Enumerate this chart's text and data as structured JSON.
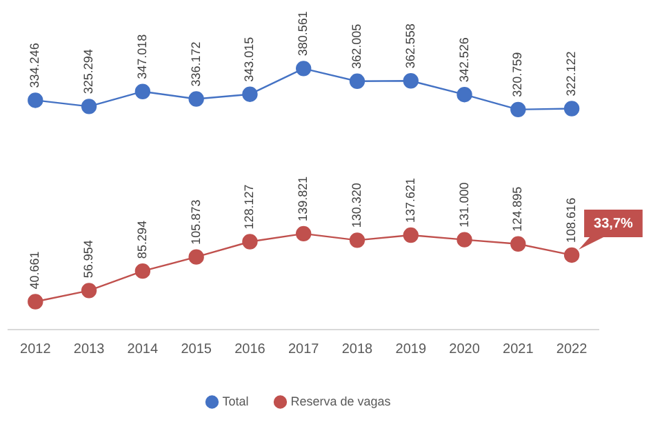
{
  "chart_data": {
    "type": "line",
    "categories": [
      "2012",
      "2013",
      "2014",
      "2015",
      "2016",
      "2017",
      "2018",
      "2019",
      "2020",
      "2021",
      "2022"
    ],
    "series": [
      {
        "name": "Total",
        "color": "#4472c4",
        "values": [
          334246,
          325294,
          347018,
          336172,
          343015,
          380561,
          362005,
          362558,
          342526,
          320759,
          322122
        ],
        "value_labels": [
          "334.246",
          "325.294",
          "347.018",
          "336.172",
          "343.015",
          "380.561",
          "362.005",
          "362.558",
          "342.526",
          "320.759",
          "322.122"
        ]
      },
      {
        "name": "Reserva de vagas",
        "color": "#c0504d",
        "values": [
          40661,
          56954,
          85294,
          105873,
          128127,
          139821,
          130320,
          137621,
          131000,
          124895,
          108616
        ],
        "value_labels": [
          "40.661",
          "56.954",
          "85.294",
          "105.873",
          "128.127",
          "139.821",
          "130.320",
          "137.621",
          "131.000",
          "124.895",
          "108.616"
        ]
      }
    ],
    "tick_labels": "x",
    "legend": "bottom",
    "marker": "circle",
    "line_style": "solid",
    "annotations": [
      {
        "text": "33,7%",
        "x": "2022",
        "y": 108616
      }
    ]
  }
}
